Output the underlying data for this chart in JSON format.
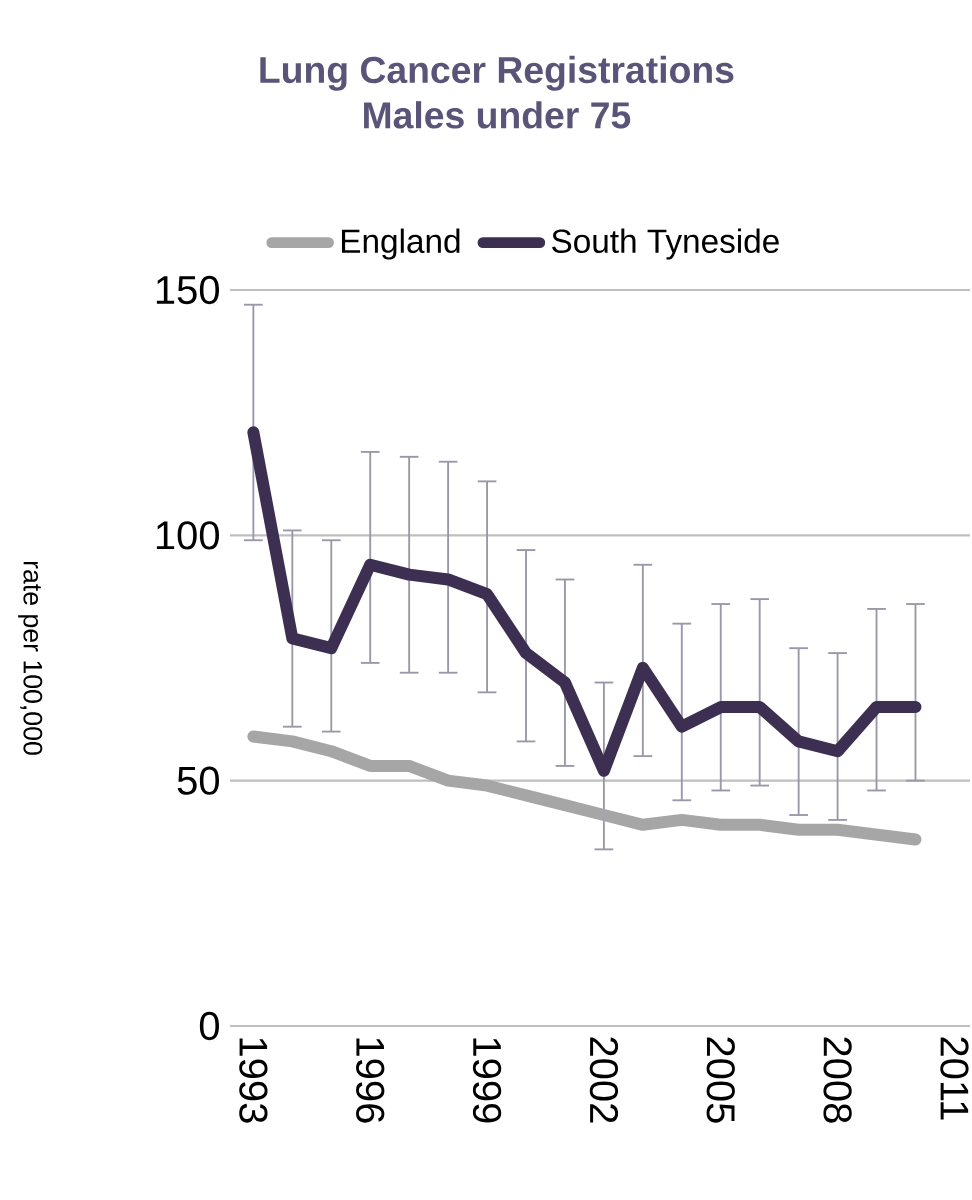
{
  "chart_data": {
    "type": "line",
    "title": "Lung Cancer Registrations",
    "subtitle": "Males under 75",
    "ylabel": "rate per 100,000",
    "x": [
      1993,
      1994,
      1995,
      1996,
      1997,
      1998,
      1999,
      2000,
      2001,
      2002,
      2003,
      2004,
      2005,
      2006,
      2007,
      2008,
      2009,
      2010
    ],
    "series": [
      {
        "name": "England",
        "color": "#a6a6a6",
        "values": [
          59,
          58,
          56,
          53,
          53,
          50,
          49,
          47,
          45,
          43,
          41,
          42,
          41,
          41,
          40,
          40,
          39,
          38
        ]
      },
      {
        "name": "South Tyneside",
        "color": "#3d2f52",
        "values": [
          121,
          79,
          77,
          94,
          92,
          91,
          88,
          76,
          70,
          52,
          73,
          61,
          65,
          65,
          58,
          56,
          65,
          65
        ],
        "errors": [
          [
            99,
            147
          ],
          [
            61,
            101
          ],
          [
            60,
            99
          ],
          [
            74,
            117
          ],
          [
            72,
            116
          ],
          [
            72,
            115
          ],
          [
            68,
            111
          ],
          [
            58,
            97
          ],
          [
            53,
            91
          ],
          [
            36,
            70
          ],
          [
            55,
            94
          ],
          [
            46,
            82
          ],
          [
            48,
            86
          ],
          [
            49,
            87
          ],
          [
            43,
            77
          ],
          [
            42,
            76
          ],
          [
            48,
            85
          ],
          [
            50,
            86
          ]
        ]
      }
    ],
    "xlim": [
      1992.4,
      2011.4
    ],
    "xticks": [
      1993,
      1996,
      1999,
      2002,
      2005,
      2008,
      2011
    ],
    "ylim": [
      0,
      150
    ],
    "yticks": [
      0,
      50,
      100,
      150
    ],
    "grid": "y",
    "legend": "top",
    "marker": "none",
    "line_style": "solid"
  }
}
